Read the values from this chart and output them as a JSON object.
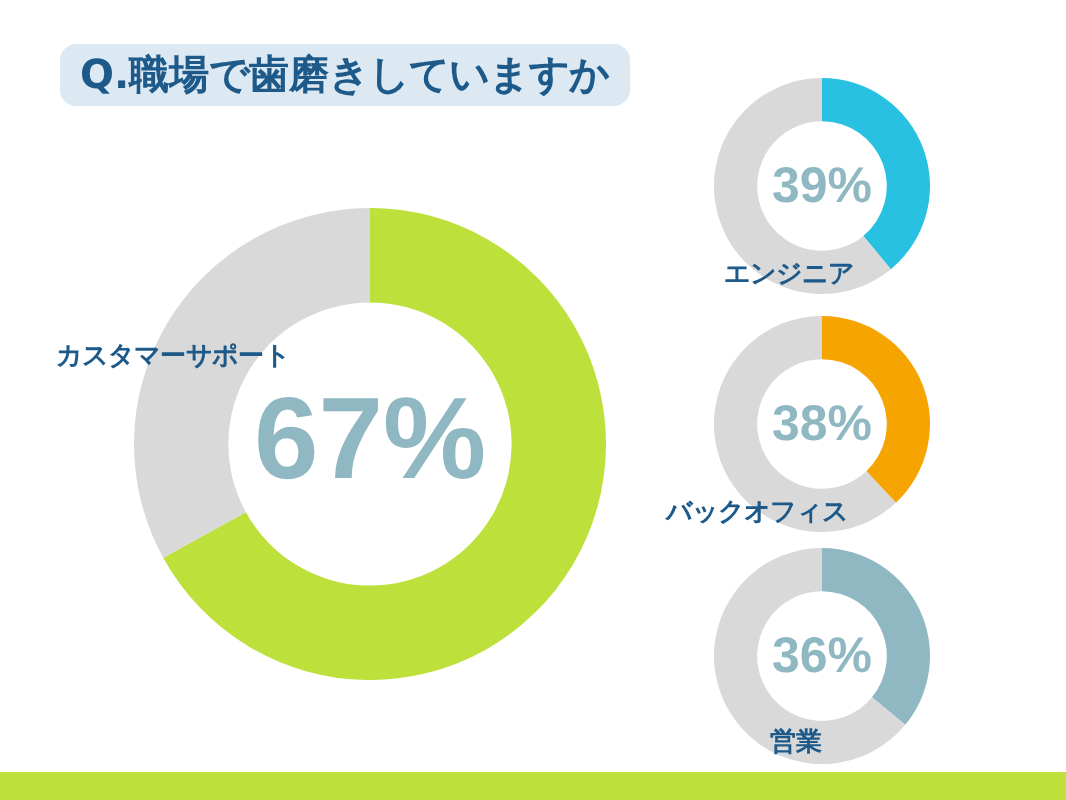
{
  "chart_data": [
    {
      "type": "other",
      "title": "Q.職場で歯磨きしていますか"
    },
    {
      "type": "donut",
      "title": "カスタマーサポート",
      "categories": [
        null,
        null
      ],
      "values": [
        67,
        33
      ],
      "colors": [
        "#bde03a",
        "#d9d9d9"
      ],
      "value_labels": [
        "67%",
        null
      ]
    },
    {
      "type": "donut",
      "title": "エンジニア",
      "categories": [
        null,
        null
      ],
      "values": [
        39,
        61
      ],
      "colors": [
        "#29c1e1",
        "#d9d9d9"
      ],
      "value_labels": [
        "39%",
        null
      ]
    },
    {
      "type": "donut",
      "title": "バックオフィス",
      "categories": [
        null,
        null
      ],
      "values": [
        38,
        62
      ],
      "colors": [
        "#f5a400",
        "#d9d9d9"
      ],
      "value_labels": [
        "38%",
        null
      ]
    },
    {
      "type": "donut",
      "title": "営業",
      "categories": [
        null,
        null
      ],
      "values": [
        36,
        64
      ],
      "colors": [
        "#8fb8c2",
        "#d9d9d9"
      ],
      "value_labels": [
        "36%",
        null
      ]
    }
  ]
}
